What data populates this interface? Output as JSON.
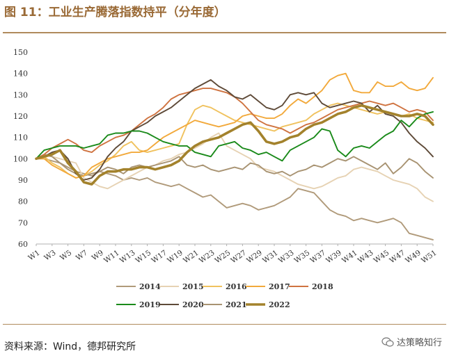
{
  "header": {
    "title": "图 11：工业生产腾落指数持平（分年度）"
  },
  "footer": {
    "source": "资料来源：Wind，德邦研究所",
    "watermark": "达策略知行"
  },
  "colors": {
    "2014": "#b09a7a",
    "2015": "#e6d2b3",
    "2016": "#f0c25e",
    "2017": "#f2a93b",
    "2018": "#cf7340",
    "2019": "#1a8a1a",
    "2020": "#5e4a38",
    "2021": "#a89372",
    "2022": "#a3822c",
    "axis": "#b0b0b0",
    "rule": "#b08a5c"
  },
  "chart_data": {
    "type": "line",
    "title": "工业生产腾落指数持平（分年度）",
    "xlabel": "",
    "ylabel": "",
    "ylim": [
      60,
      150
    ],
    "yticks": [
      60,
      70,
      80,
      90,
      100,
      110,
      120,
      130,
      140,
      150
    ],
    "xticks": [
      "W1",
      "W3",
      "W5",
      "W7",
      "W9",
      "W11",
      "W13",
      "W15",
      "W17",
      "W19",
      "W21",
      "W23",
      "W25",
      "W27",
      "W29",
      "W31",
      "W33",
      "W35",
      "W37",
      "W39",
      "W41",
      "W43",
      "W45",
      "W47",
      "W49",
      "W51"
    ],
    "legend_row1": [
      "2014",
      "2015",
      "2016",
      "2017",
      "2018"
    ],
    "legend_row2": [
      "2019",
      "2020",
      "2021",
      "2022"
    ],
    "series": [
      {
        "name": "2014",
        "values": [
          100,
          100,
          99,
          98,
          96,
          94,
          93,
          92,
          94,
          93,
          92,
          90,
          91,
          90,
          91,
          89,
          88,
          87,
          88,
          86,
          84,
          82,
          83,
          80,
          77,
          78,
          79,
          78,
          76,
          77,
          78,
          80,
          82,
          86,
          85,
          84,
          80,
          76,
          74,
          73,
          71,
          72,
          71,
          70,
          71,
          72,
          70,
          65,
          64,
          63,
          62
        ]
      },
      {
        "name": "2015",
        "values": [
          100,
          102,
          101,
          100,
          99,
          98,
          91,
          89,
          87,
          86,
          88,
          90,
          92,
          94,
          96,
          97,
          99,
          100,
          102,
          103,
          105,
          107,
          110,
          112,
          106,
          104,
          102,
          100,
          96,
          95,
          94,
          92,
          90,
          88,
          87,
          86,
          87,
          89,
          91,
          92,
          95,
          96,
          95,
          94,
          92,
          90,
          89,
          88,
          86,
          82,
          80
        ]
      },
      {
        "name": "2016",
        "values": [
          100,
          101,
          98,
          96,
          93,
          91,
          92,
          94,
          97,
          99,
          102,
          106,
          108,
          104,
          103,
          104,
          105,
          106,
          107,
          116,
          123,
          125,
          124,
          122,
          120,
          118,
          117,
          116,
          115,
          114,
          113,
          115,
          116,
          117,
          118,
          121,
          123,
          125,
          126,
          125,
          124,
          123,
          122,
          121,
          122,
          121,
          120,
          121,
          119,
          118,
          117
        ]
      },
      {
        "name": "2017",
        "values": [
          100,
          100,
          97,
          95,
          93,
          91,
          92,
          96,
          98,
          100,
          101,
          102,
          103,
          103,
          104,
          107,
          110,
          112,
          114,
          116,
          118,
          117,
          116,
          115,
          116,
          117,
          120,
          121,
          120,
          119,
          119,
          121,
          125,
          128,
          126,
          129,
          132,
          137,
          139,
          140,
          132,
          131,
          131,
          136,
          134,
          134,
          136,
          133,
          132,
          133,
          138
        ]
      },
      {
        "name": "2018",
        "values": [
          100,
          102,
          105,
          107,
          109,
          107,
          104,
          103,
          106,
          108,
          110,
          111,
          113,
          116,
          119,
          121,
          124,
          128,
          130,
          131,
          132,
          133,
          133,
          132,
          131,
          129,
          126,
          122,
          118,
          116,
          115,
          114,
          112,
          114,
          116,
          117,
          119,
          121,
          123,
          124,
          125,
          126,
          127,
          126,
          125,
          126,
          124,
          122,
          123,
          122,
          118
        ]
      },
      {
        "name": "2019",
        "values": [
          100,
          104,
          105,
          106,
          106,
          106,
          105,
          106,
          107,
          111,
          112,
          112,
          113,
          113,
          112,
          110,
          108,
          107,
          106,
          106,
          103,
          102,
          101,
          106,
          107,
          108,
          105,
          104,
          102,
          103,
          101,
          99,
          104,
          106,
          108,
          110,
          114,
          113,
          104,
          101,
          105,
          106,
          105,
          108,
          111,
          113,
          118,
          115,
          119,
          121,
          122
        ]
      },
      {
        "name": "2020",
        "values": [
          100,
          101,
          103,
          104,
          100,
          93,
          90,
          91,
          95,
          101,
          105,
          108,
          113,
          115,
          117,
          120,
          122,
          124,
          127,
          130,
          133,
          135,
          137,
          134,
          132,
          129,
          128,
          130,
          127,
          124,
          123,
          125,
          130,
          131,
          130,
          131,
          126,
          124,
          125,
          126,
          127,
          126,
          122,
          125,
          121,
          120,
          117,
          112,
          108,
          105,
          101
        ]
      },
      {
        "name": "2021",
        "values": [
          100,
          102,
          101,
          98,
          95,
          93,
          92,
          93,
          94,
          96,
          95,
          93,
          96,
          97,
          96,
          97,
          98,
          99,
          101,
          97,
          96,
          97,
          95,
          94,
          95,
          96,
          95,
          98,
          97,
          94,
          93,
          94,
          92,
          94,
          95,
          97,
          96,
          98,
          100,
          99,
          101,
          99,
          97,
          95,
          98,
          93,
          96,
          100,
          98,
          94,
          91
        ]
      },
      {
        "name": "2022",
        "values": [
          100,
          101,
          102,
          104,
          98,
          94,
          89,
          88,
          92,
          94,
          94,
          95,
          95,
          96,
          96,
          95,
          96,
          97,
          99,
          103,
          106,
          108,
          109,
          110,
          112,
          114,
          116,
          117,
          113,
          108,
          107,
          108,
          110,
          111,
          114,
          116,
          117,
          119,
          121,
          122,
          124,
          125,
          124,
          123,
          122,
          121,
          120,
          120,
          121,
          120,
          116
        ]
      }
    ]
  }
}
